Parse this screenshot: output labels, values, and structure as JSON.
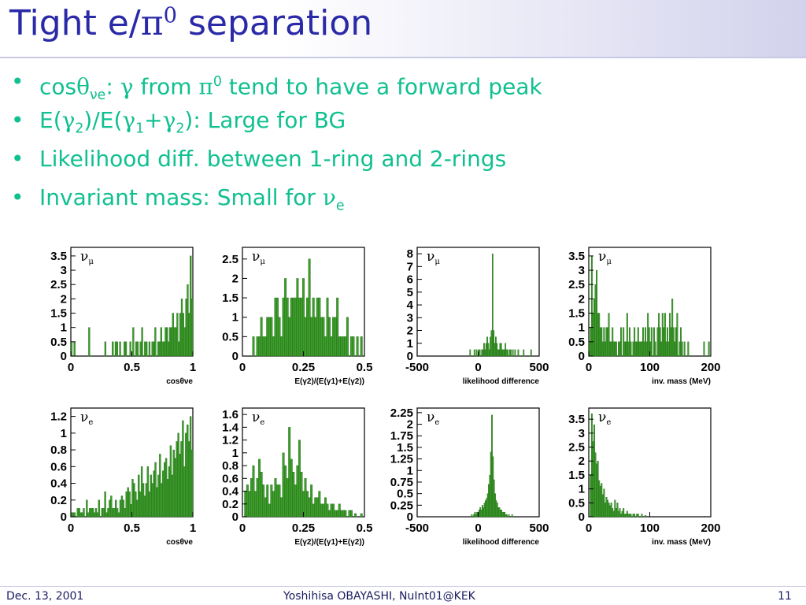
{
  "slide": {
    "title_prefix": "Tight e/",
    "title_pi": "π",
    "title_sup": "0",
    "title_suffix": " separation"
  },
  "bullets": [
    {
      "parts": [
        "cos",
        "θ",
        "νe",
        ": ",
        "γ",
        " from ",
        "π",
        "0",
        " tend to have a forward peak"
      ]
    },
    {
      "parts": [
        "E(",
        "γ",
        "2",
        ")/E(",
        "γ",
        "1",
        "+",
        "γ",
        "2",
        "): Large for BG"
      ]
    },
    {
      "parts": [
        "Likelihood diff. between 1-ring and 2-rings"
      ]
    },
    {
      "parts": [
        "Invariant mass: Small for ",
        "ν",
        "e"
      ]
    }
  ],
  "footer": {
    "date": "Dec. 13, 2001",
    "author": "Yoshihisa OBAYASHI, NuInt01@KEK",
    "page": "11"
  },
  "colors": {
    "title": "#2a2aa8",
    "bullet_text": "#10c090",
    "bar_fill": "#3d9b2c",
    "bar_edge": "#1e6a12"
  },
  "chart_data": [
    {
      "type": "bar",
      "row": 0,
      "col": 0,
      "label_greek": "ν",
      "label_sub": "μ",
      "xlabel": "cosθνe",
      "xticks": [
        "0",
        "0.5",
        "1"
      ],
      "xlim": [
        0,
        1
      ],
      "ylim": [
        0,
        3.8
      ],
      "yticks": [
        "0",
        "0.5",
        "1",
        "1.5",
        "2",
        "2.5",
        "3",
        "3.5"
      ],
      "values": [
        0.5,
        0,
        0.5,
        0,
        0,
        0,
        0,
        0,
        0,
        0,
        0,
        0,
        1,
        0,
        0,
        0,
        0,
        0,
        0,
        0,
        0,
        0,
        0,
        0.5,
        0,
        0,
        0,
        0,
        0.5,
        0,
        0.5,
        0.5,
        0,
        0.5,
        0,
        0,
        0.5,
        0.5,
        0,
        0,
        0.5,
        0,
        1,
        0,
        0.5,
        0.5,
        0,
        0.5,
        1,
        0,
        0.5,
        0.5,
        0,
        0.5,
        0,
        0.5,
        0.5,
        1,
        0,
        0.5,
        0.5,
        1,
        0.5,
        0.5,
        1,
        1,
        0.5,
        1,
        1,
        1.5,
        1,
        1,
        1.5,
        0.5,
        1.5,
        2,
        1.5,
        1,
        2,
        2.5,
        1.5,
        3.5,
        2
      ]
    },
    {
      "type": "bar",
      "row": 0,
      "col": 1,
      "label_greek": "ν",
      "label_sub": "μ",
      "xlabel": "E(γ2)/(E(γ1)+E(γ2))",
      "xticks": [
        "0",
        "0.25",
        "0.5"
      ],
      "xlim": [
        0,
        0.5
      ],
      "ylim": [
        0,
        2.8
      ],
      "yticks": [
        "0",
        "0.5",
        "1",
        "1.5",
        "2",
        "2.5"
      ],
      "values": [
        0,
        0,
        0,
        0,
        0,
        0.5,
        0,
        0.5,
        0.5,
        1,
        0.5,
        0.5,
        1,
        1,
        1,
        0.5,
        1.5,
        1.5,
        1,
        0.5,
        1.5,
        2,
        1.5,
        1,
        1.5,
        1.5,
        1.5,
        2,
        1.5,
        1.5,
        2,
        1,
        1.5,
        2.5,
        1,
        1.5,
        1,
        1.5,
        1.5,
        1,
        1,
        0.5,
        1.5,
        1,
        0.5,
        1,
        1,
        1.5,
        0.5,
        0.5,
        0.5,
        0.5,
        1,
        0,
        0.5,
        0.5,
        0,
        0.5,
        0,
        0.5,
        0
      ]
    },
    {
      "type": "bar",
      "row": 0,
      "col": 2,
      "label_greek": "ν",
      "label_sub": "μ",
      "xlabel": "likelihood difference",
      "xticks": [
        "-500",
        "0",
        "500"
      ],
      "xlim": [
        -500,
        500
      ],
      "ylim": [
        0,
        8.5
      ],
      "yticks": [
        "0",
        "1",
        "2",
        "3",
        "4",
        "5",
        "6",
        "7",
        "8"
      ],
      "values": [
        0,
        0,
        0,
        0,
        0,
        0,
        0,
        0,
        0,
        0,
        0,
        0,
        0,
        0,
        0,
        0,
        0,
        0,
        0,
        0,
        0,
        0,
        0,
        0,
        0,
        0,
        0,
        0,
        0,
        0,
        0,
        0,
        0,
        0,
        0,
        0,
        0,
        0,
        0,
        0,
        0,
        0,
        0,
        0,
        0,
        0,
        0,
        0,
        0,
        0.5,
        0,
        0,
        0,
        0.5,
        0,
        0.5,
        0,
        0.5,
        0.5,
        0,
        0.5,
        0.5,
        1,
        0.5,
        1,
        1.5,
        1,
        0.5,
        1.5,
        2,
        8,
        2,
        1,
        1.5,
        1,
        0.5,
        0.5,
        1,
        1,
        0.5,
        0.5,
        0.5,
        1,
        0.5,
        0.5,
        0,
        0.5,
        0.5,
        0,
        0.5,
        0,
        0.5,
        0,
        0,
        0.5,
        0,
        0,
        0,
        0,
        0.5,
        0,
        0,
        0,
        0,
        0,
        0,
        0.5,
        0,
        0,
        0,
        0,
        0,
        0,
        0
      ]
    },
    {
      "type": "bar",
      "row": 0,
      "col": 3,
      "label_greek": "ν",
      "label_sub": "μ",
      "xlabel": "inv. mass (MeV)",
      "xticks": [
        "0",
        "100",
        "200"
      ],
      "xlim": [
        0,
        200
      ],
      "ylim": [
        0,
        3.8
      ],
      "yticks": [
        "0",
        "0.5",
        "1",
        "1.5",
        "2",
        "2.5",
        "3",
        "3.5"
      ],
      "values": [
        0.5,
        1,
        3.5,
        1.5,
        2,
        2.5,
        3,
        1.5,
        1.5,
        1,
        1,
        0.5,
        1,
        0.5,
        1,
        1,
        1.5,
        0.5,
        0.5,
        1,
        0.5,
        0.5,
        0.5,
        0,
        0.5,
        0.5,
        1,
        0,
        1,
        0.5,
        0.5,
        1.5,
        0.5,
        1,
        0.5,
        0,
        0.5,
        1,
        0.5,
        0.5,
        1,
        0.5,
        0.5,
        0.5,
        1,
        0.5,
        1,
        0.5,
        1.5,
        1,
        0.5,
        1,
        0,
        1,
        0.5,
        0,
        1,
        1.5,
        1,
        0.5,
        1.5,
        1,
        1.5,
        0.5,
        1,
        0.5,
        1.5,
        1,
        2,
        1,
        0.5,
        1,
        1.5,
        0,
        0.5,
        1,
        0.5,
        0,
        0.5,
        0,
        0,
        0.5,
        0,
        0,
        0,
        0,
        0,
        0,
        0,
        0,
        0,
        0,
        0,
        0,
        0.5,
        0,
        0,
        0,
        0.5,
        0
      ]
    },
    {
      "type": "bar",
      "row": 1,
      "col": 0,
      "label_greek": "ν",
      "label_sub": "e",
      "xlabel": "cosθνe",
      "xticks": [
        "0",
        "0.5",
        "1"
      ],
      "xlim": [
        0,
        1
      ],
      "ylim": [
        0,
        1.3
      ],
      "yticks": [
        "0",
        "0.2",
        "0.4",
        "0.6",
        "0.8",
        "1",
        "1.2"
      ],
      "values": [
        0.05,
        0.05,
        0.05,
        0,
        0.1,
        0.1,
        0.05,
        0.05,
        0.1,
        0,
        0.2,
        0.05,
        0.1,
        0.1,
        0.1,
        0.05,
        0.1,
        0.05,
        0.2,
        0,
        0.1,
        0.1,
        0.3,
        0.05,
        0.1,
        0.2,
        0.25,
        0.1,
        0.1,
        0.2,
        0.1,
        0.05,
        0.2,
        0.25,
        0.2,
        0.1,
        0.3,
        0.35,
        0.3,
        0.15,
        0.45,
        0.4,
        0.3,
        0.2,
        0.5,
        0.3,
        0.6,
        0.4,
        0.25,
        0.4,
        0.6,
        0.3,
        0.5,
        0.4,
        0.55,
        0.65,
        0.35,
        0.5,
        0.75,
        0.4,
        0.55,
        0.65,
        0.7,
        0.45,
        0.6,
        0.85,
        0.5,
        0.8,
        0.7,
        0.9,
        1.0,
        0.75,
        0.9,
        1.15,
        0.6,
        1.0,
        1.1,
        0.9,
        1.2,
        0.8
      ]
    },
    {
      "type": "bar",
      "row": 1,
      "col": 1,
      "label_greek": "ν",
      "label_sub": "e",
      "xlabel": "E(γ2)/(E(γ1)+E(γ2))",
      "xticks": [
        "0",
        "0.25",
        "0.5"
      ],
      "xlim": [
        0,
        0.5
      ],
      "ylim": [
        0,
        1.7
      ],
      "yticks": [
        "0",
        "0.2",
        "0.4",
        "0.6",
        "0.8",
        "1",
        "1.2",
        "1.4",
        "1.6"
      ],
      "values": [
        0,
        0.4,
        0.5,
        0.4,
        0.6,
        0.8,
        0.4,
        0.6,
        0.9,
        0.7,
        0.5,
        0.3,
        0.5,
        0.2,
        0.5,
        0.4,
        0.6,
        0.5,
        0.5,
        0.3,
        1.0,
        0.8,
        0.6,
        1.4,
        0.9,
        0.7,
        0.5,
        0.8,
        1.2,
        0.7,
        0.4,
        0.6,
        0.4,
        0.3,
        0.5,
        0.2,
        0.3,
        0.3,
        0.4,
        0.2,
        0.2,
        0.3,
        0.2,
        0.1,
        0.2,
        0.2,
        0.1,
        0.1,
        0.2,
        0.1,
        0.1,
        0.1,
        0,
        0.1,
        0.1,
        0,
        0.05,
        0,
        0,
        0.05,
        0
      ]
    },
    {
      "type": "bar",
      "row": 1,
      "col": 2,
      "label_greek": "ν",
      "label_sub": "e",
      "xlabel": "likelihood difference",
      "xticks": [
        "-500",
        "0",
        "500"
      ],
      "xlim": [
        -500,
        500
      ],
      "ylim": [
        0,
        2.35
      ],
      "yticks": [
        "0",
        "0.25",
        "0.5",
        "0.75",
        "1",
        "1.25",
        "1.5",
        "1.75",
        "2",
        "2.25"
      ],
      "values": [
        0,
        0,
        0,
        0,
        0,
        0,
        0,
        0,
        0,
        0,
        0,
        0,
        0,
        0,
        0,
        0,
        0,
        0,
        0,
        0,
        0,
        0,
        0,
        0,
        0,
        0,
        0,
        0,
        0,
        0,
        0,
        0,
        0,
        0,
        0,
        0,
        0,
        0,
        0,
        0,
        0,
        0,
        0,
        0,
        0,
        0,
        0,
        0,
        0,
        0,
        0,
        0.05,
        0,
        0.05,
        0.1,
        0.05,
        0.1,
        0.1,
        0.15,
        0.2,
        0.15,
        0.25,
        0.2,
        0.3,
        0.35,
        0.4,
        0.5,
        0.7,
        0.9,
        1.4,
        2.2,
        1.3,
        0.8,
        0.5,
        0.35,
        0.3,
        0.2,
        0.2,
        0.15,
        0.15,
        0.1,
        0.1,
        0.1,
        0.05,
        0.05,
        0,
        0.05,
        0,
        0,
        0.05,
        0,
        0,
        0,
        0,
        0,
        0,
        0,
        0,
        0,
        0,
        0,
        0,
        0,
        0,
        0,
        0,
        0,
        0,
        0,
        0,
        0,
        0,
        0,
        0,
        0
      ]
    },
    {
      "type": "bar",
      "row": 1,
      "col": 3,
      "label_greek": "ν",
      "label_sub": "e",
      "xlabel": "inv. mass (MeV)",
      "xticks": [
        "0",
        "100",
        "200"
      ],
      "xlim": [
        0,
        200
      ],
      "ylim": [
        0,
        3.9
      ],
      "yticks": [
        "0",
        "0.5",
        "1",
        "1.5",
        "2",
        "2.5",
        "3",
        "3.5"
      ],
      "values": [
        0,
        1.5,
        3.7,
        2.7,
        3.3,
        2.3,
        1.9,
        2.0,
        1.3,
        1.1,
        1.2,
        0.8,
        1.0,
        0.5,
        0.7,
        0.6,
        0.5,
        0.4,
        0.5,
        0.3,
        0.2,
        0.6,
        0.3,
        0.5,
        0.2,
        0.3,
        0.1,
        0.2,
        0.3,
        0.1,
        0.1,
        0.2,
        0.1,
        0.1,
        0.1,
        0,
        0.1,
        0.1,
        0,
        0.1,
        0.1,
        0,
        0,
        0.1,
        0,
        0,
        0.05,
        0,
        0,
        0,
        0,
        0,
        0,
        0,
        0,
        0,
        0,
        0,
        0,
        0,
        0,
        0,
        0,
        0,
        0,
        0,
        0,
        0,
        0,
        0,
        0,
        0,
        0,
        0,
        0,
        0,
        0,
        0,
        0,
        0,
        0,
        0,
        0,
        0,
        0,
        0,
        0,
        0,
        0,
        0,
        0,
        0,
        0,
        0,
        0,
        0,
        0,
        0,
        0,
        0
      ]
    }
  ]
}
